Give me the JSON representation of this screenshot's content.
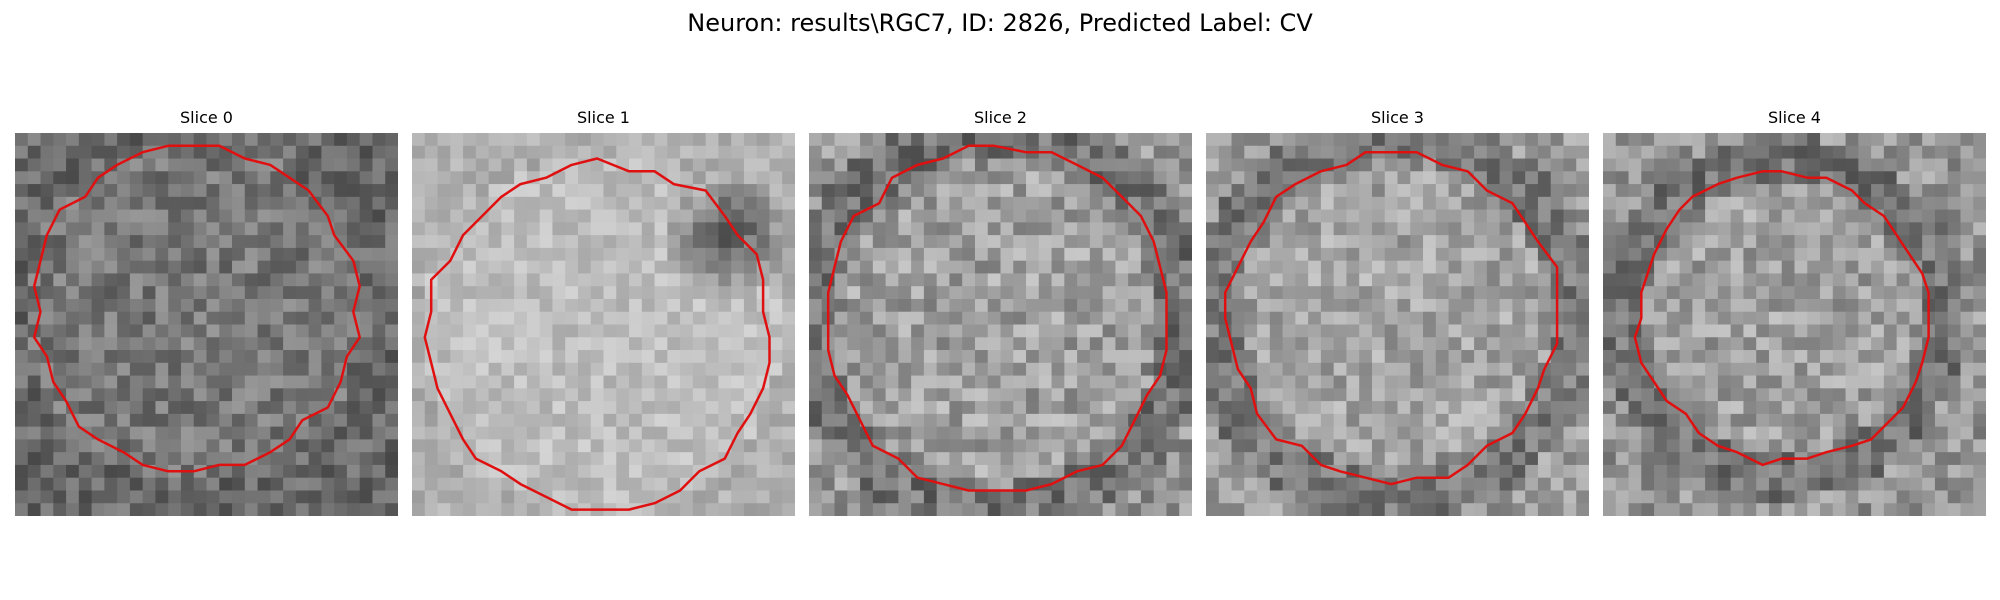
{
  "figure": {
    "title": "Neuron: results\\RGC7, ID: 2826, Predicted Label: CV"
  },
  "panels": [
    {
      "title": "Slice 0",
      "grid": 30,
      "contour_color": "#e01010",
      "tone": "dark",
      "mean_gray": 120,
      "contrast": 34,
      "contour_center_frac": [
        0.47,
        0.46
      ],
      "contour_radius_frac": 0.42
    },
    {
      "title": "Slice 1",
      "grid": 30,
      "contour_color": "#e01010",
      "tone": "light",
      "mean_gray": 190,
      "contrast": 22,
      "contour_center_frac": [
        0.49,
        0.53
      ],
      "contour_radius_frac": 0.45
    },
    {
      "title": "Slice 2",
      "grid": 30,
      "contour_color": "#e01010",
      "tone": "mixed",
      "mean_gray": 150,
      "contrast": 40,
      "contour_center_frac": [
        0.49,
        0.49
      ],
      "contour_radius_frac": 0.45
    },
    {
      "title": "Slice 3",
      "grid": 30,
      "contour_color": "#e01010",
      "tone": "mixed",
      "mean_gray": 155,
      "contrast": 36,
      "contour_center_frac": [
        0.49,
        0.48
      ],
      "contour_radius_frac": 0.43
    },
    {
      "title": "Slice 4",
      "grid": 30,
      "contour_color": "#e01010",
      "tone": "mixed",
      "mean_gray": 150,
      "contrast": 38,
      "contour_center_frac": [
        0.47,
        0.48
      ],
      "contour_radius_frac": 0.38
    }
  ]
}
